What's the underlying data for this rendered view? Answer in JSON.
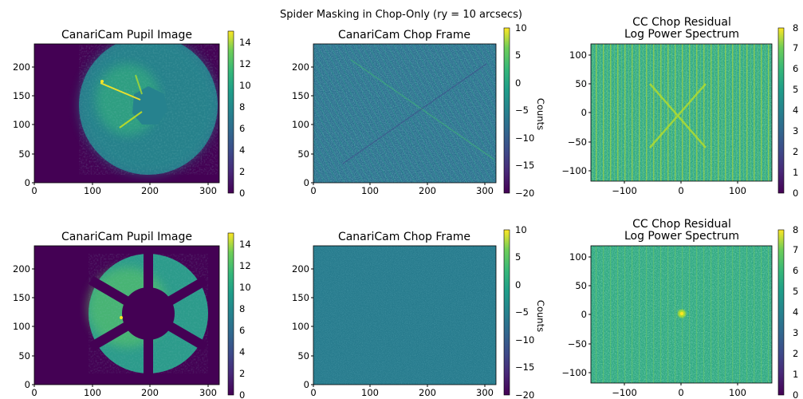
{
  "figure": {
    "suptitle": "Spider Masking in Chop-Only (ry = 10 arcsecs)"
  },
  "colors": {
    "viridis_dark": "#440154",
    "viridis_mid": "#21918c",
    "viridis_bright": "#fde725"
  },
  "chart_data": [
    {
      "type": "heatmap",
      "panel": "row1-col1",
      "title": "CanariCam Pupil Image",
      "xlabel": "",
      "ylabel": "",
      "xlim": [
        0,
        320
      ],
      "ylim": [
        0,
        240
      ],
      "xticks": [
        "0",
        "100",
        "200",
        "300"
      ],
      "yticks": [
        "0",
        "50",
        "100",
        "150",
        "200"
      ],
      "colormap": "viridis",
      "colorbar": {
        "range": [
          0,
          15
        ],
        "ticks": [
          "0",
          "2",
          "4",
          "6",
          "8",
          "10",
          "12",
          "14"
        ],
        "label": ""
      },
      "content": "circular pupil, ~7-8 counts, central obscuration, bright spider streaks up-left"
    },
    {
      "type": "heatmap",
      "panel": "row1-col2",
      "title": "CanariCam Chop Frame",
      "xlabel": "",
      "ylabel": "",
      "xlim": [
        0,
        320
      ],
      "ylim": [
        0,
        240
      ],
      "xticks": [
        "0",
        "100",
        "200",
        "300"
      ],
      "yticks": [
        "0",
        "50",
        "100",
        "150",
        "200"
      ],
      "colormap": "viridis",
      "colorbar": {
        "range": [
          -20,
          10
        ],
        "ticks": [
          "10",
          "5",
          "0",
          "−5",
          "−10",
          "−15",
          "−20"
        ],
        "label": "Counts"
      },
      "content": "noisy frame centered near -3 counts with diagonal fringe pattern"
    },
    {
      "type": "heatmap",
      "panel": "row1-col3",
      "title": "CC Chop Residual\nLog Power Spectrum",
      "xlabel": "",
      "ylabel": "",
      "xlim": [
        -160,
        160
      ],
      "ylim": [
        -120,
        120
      ],
      "xticks": [
        "−100",
        "0",
        "100"
      ],
      "yticks": [
        "−100",
        "−50",
        "0",
        "50",
        "100"
      ],
      "colormap": "viridis",
      "colorbar": {
        "range": [
          0,
          8
        ],
        "ticks": [
          "0",
          "1",
          "2",
          "3",
          "4",
          "5",
          "6",
          "7",
          "8"
        ],
        "label": ""
      },
      "content": "noisy spectrum ~4, vertical bright stripes, X-shaped feature at center"
    },
    {
      "type": "heatmap",
      "panel": "row2-col1",
      "title": "CanariCam Pupil Image",
      "xlabel": "",
      "ylabel": "",
      "xlim": [
        0,
        320
      ],
      "ylim": [
        0,
        240
      ],
      "xticks": [
        "0",
        "100",
        "200",
        "300"
      ],
      "yticks": [
        "0",
        "50",
        "100",
        "150",
        "200"
      ],
      "colormap": "viridis",
      "colorbar": {
        "range": [
          0,
          15
        ],
        "ticks": [
          "0",
          "2",
          "4",
          "6",
          "8",
          "10",
          "12",
          "14"
        ],
        "label": ""
      },
      "content": "masked pupil, six segments separated by spider masks, central hexagonal obscuration"
    },
    {
      "type": "heatmap",
      "panel": "row2-col2",
      "title": "CanariCam Chop Frame",
      "xlabel": "",
      "ylabel": "",
      "xlim": [
        0,
        320
      ],
      "ylim": [
        0,
        240
      ],
      "xticks": [
        "0",
        "100",
        "200",
        "300"
      ],
      "yticks": [
        "0",
        "50",
        "100",
        "150",
        "200"
      ],
      "colormap": "viridis",
      "colorbar": {
        "range": [
          -20,
          10
        ],
        "ticks": [
          "10",
          "5",
          "0",
          "−5",
          "−10",
          "−15",
          "−20"
        ],
        "label": "Counts"
      },
      "content": "uniform low-noise frame near -3 counts"
    },
    {
      "type": "heatmap",
      "panel": "row2-col3",
      "title": "CC Chop Residual\nLog Power Spectrum",
      "xlabel": "",
      "ylabel": "",
      "xlim": [
        -160,
        160
      ],
      "ylim": [
        -120,
        120
      ],
      "xticks": [
        "−100",
        "0",
        "100"
      ],
      "yticks": [
        "−100",
        "−50",
        "0",
        "50",
        "100"
      ],
      "colormap": "viridis",
      "colorbar": {
        "range": [
          0,
          8
        ],
        "ticks": [
          "0",
          "1",
          "2",
          "3",
          "4",
          "5",
          "6",
          "7",
          "8"
        ],
        "label": ""
      },
      "content": "noisy spectrum ~4 with fainter vertical stripes and small bright central spot"
    }
  ]
}
